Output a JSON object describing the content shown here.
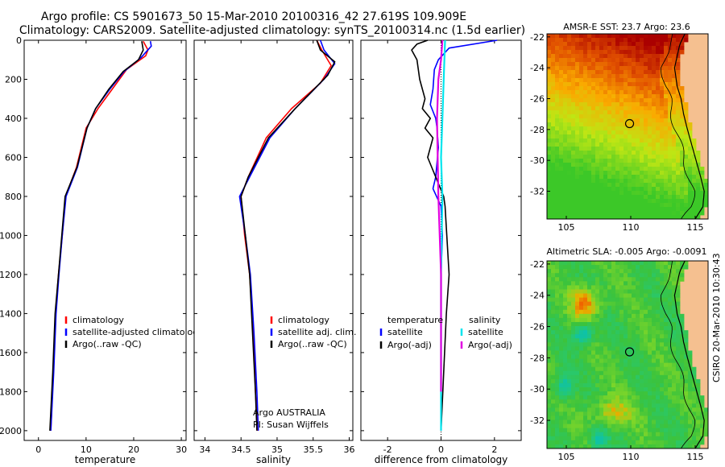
{
  "header": {
    "title_line1": "Argo profile: CS 5901673_50 15-Mar-2010 20100316_42 27.619S 109.909E",
    "title_line2": "Climatology: CARS2009. Satellite-adjusted climatology: synTS_20100314.nc (1.5d earlier)"
  },
  "credit": {
    "argo": "Argo AUSTRALIA",
    "pi": "PI: Susan Wijffels",
    "csiro": "CSIRO  20-Mar-2010 10:30:43"
  },
  "colors": {
    "climatology": "#ff0000",
    "satellite": "#0000ff",
    "argo": "#000000",
    "sal_satellite": "#00e5ee",
    "sal_argo": "#e000e0",
    "land": "#f5c090"
  },
  "chart_data": [
    {
      "type": "line",
      "name": "temperature-panel",
      "xlabel": "temperature",
      "ylabel": "",
      "xlim": [
        -3,
        31
      ],
      "ylim": [
        2050,
        0
      ],
      "y_reversed": true,
      "xticks": [
        0,
        10,
        20,
        30
      ],
      "yticks": [
        0,
        200,
        400,
        600,
        800,
        1000,
        1200,
        1400,
        1600,
        1800,
        2000
      ],
      "legend": [
        "climatology",
        "satellite-adjusted climatology",
        "Argo(..raw -QC)"
      ],
      "legend_position": "lower-right",
      "series": [
        {
          "name": "climatology",
          "color": "#ff0000",
          "x": [
            22.0,
            23.0,
            22.5,
            18.5,
            15.5,
            12.5,
            10.0,
            8.0,
            5.7,
            5.0,
            4.2,
            3.6,
            3.1,
            2.6
          ],
          "y": [
            5,
            50,
            80,
            150,
            250,
            350,
            450,
            650,
            800,
            1000,
            1200,
            1400,
            1700,
            2000
          ]
        },
        {
          "name": "satellite-adjusted climatology",
          "color": "#0000ff",
          "x": [
            23.5,
            23.7,
            21.5,
            18.0,
            15.0,
            12.0,
            10.2,
            8.2,
            5.8,
            5.0,
            4.3,
            3.7,
            3.2,
            2.6
          ],
          "y": [
            5,
            30,
            90,
            160,
            250,
            350,
            450,
            650,
            800,
            1000,
            1200,
            1400,
            1700,
            2000
          ]
        },
        {
          "name": "Argo(..raw -QC)",
          "color": "#000000",
          "x": [
            21.7,
            22.0,
            21.0,
            17.8,
            14.8,
            12.0,
            10.2,
            8.1,
            5.6,
            4.9,
            4.2,
            3.5,
            3.0,
            2.4
          ],
          "y": [
            5,
            50,
            100,
            160,
            250,
            350,
            450,
            650,
            800,
            1000,
            1200,
            1400,
            1700,
            2000
          ]
        }
      ]
    },
    {
      "type": "line",
      "name": "salinity-panel",
      "xlabel": "salinity",
      "ylabel": "",
      "xlim": [
        33.85,
        36.05
      ],
      "ylim": [
        2050,
        0
      ],
      "y_reversed": true,
      "xticks": [
        34,
        34.5,
        35,
        35.5,
        36
      ],
      "yticks": [
        0,
        200,
        400,
        600,
        800,
        1000,
        1200,
        1400,
        1600,
        1800,
        2000
      ],
      "legend": [
        "climatology",
        "satellite adj. clim.",
        "Argo(..raw -QC)"
      ],
      "legend_position": "lower-right",
      "series": [
        {
          "name": "climatology",
          "color": "#ff0000",
          "x": [
            35.55,
            35.62,
            35.75,
            35.6,
            35.2,
            34.85,
            34.6,
            34.5,
            34.55,
            34.62,
            34.67,
            34.7,
            34.73
          ],
          "y": [
            0,
            50,
            130,
            220,
            350,
            500,
            700,
            800,
            1000,
            1200,
            1500,
            1800,
            2000
          ]
        },
        {
          "name": "satellite adj. clim.",
          "color": "#0000ff",
          "x": [
            35.6,
            35.65,
            35.8,
            35.65,
            35.25,
            34.9,
            34.62,
            34.48,
            34.56,
            34.63,
            34.68,
            34.72,
            34.74
          ],
          "y": [
            0,
            50,
            120,
            200,
            350,
            500,
            700,
            800,
            1000,
            1200,
            1500,
            1800,
            2000
          ]
        },
        {
          "name": "Argo(..raw -QC)",
          "color": "#000000",
          "x": [
            35.55,
            35.6,
            35.8,
            35.7,
            35.25,
            34.88,
            34.6,
            34.5,
            34.56,
            34.62,
            34.66,
            34.7,
            34.72
          ],
          "y": [
            0,
            50,
            110,
            180,
            350,
            500,
            700,
            800,
            1000,
            1200,
            1500,
            1800,
            2000
          ]
        }
      ]
    },
    {
      "type": "line",
      "name": "difference-panel",
      "xlabel": "difference from climatology",
      "ylabel": "",
      "xlim": [
        -3,
        3
      ],
      "ylim": [
        2050,
        0
      ],
      "y_reversed": true,
      "xticks": [
        -2,
        0,
        2
      ],
      "yticks": [
        0,
        200,
        400,
        600,
        800,
        1000,
        1200,
        1400,
        1600,
        1800,
        2000
      ],
      "legend": [
        "temperature",
        "satellite",
        "Argo(-adj)",
        "salinity",
        "satellite",
        "Argo(-adj)"
      ],
      "legend_position": "lower-center",
      "series": [
        {
          "name": "temperature satellite",
          "color": "#0000ff",
          "x": [
            2.1,
            0.3,
            -0.1,
            -0.25,
            -0.3,
            -0.4,
            -0.2,
            -0.15,
            -0.1,
            -0.2,
            -0.3,
            0.0,
            0.05,
            0.0,
            0.0,
            0.0
          ],
          "y": [
            0,
            40,
            100,
            150,
            250,
            330,
            400,
            450,
            550,
            700,
            760,
            850,
            1000,
            1200,
            1500,
            2000
          ]
        },
        {
          "name": "temperature Argo(-adj)",
          "color": "#000000",
          "x": [
            -0.5,
            -0.9,
            -1.1,
            -0.9,
            -0.8,
            -0.6,
            -0.7,
            -0.4,
            -0.6,
            -0.3,
            -0.5,
            0.1,
            0.15,
            0.3,
            0.2,
            0.1,
            0.0
          ],
          "y": [
            0,
            20,
            50,
            100,
            200,
            300,
            350,
            400,
            450,
            500,
            600,
            800,
            850,
            1200,
            1400,
            1700,
            2000
          ]
        },
        {
          "name": "salinity satellite",
          "color": "#00e5ee",
          "x": [
            0.15,
            0.1,
            0.05,
            0.0,
            0.05,
            0.0,
            0.0
          ],
          "y": [
            0,
            200,
            400,
            600,
            800,
            1200,
            2000
          ]
        },
        {
          "name": "salinity Argo(-adj)",
          "color": "#e000e0",
          "x": [
            0.05,
            0.0,
            -0.1,
            -0.15,
            -0.1,
            0.0,
            0.0
          ],
          "y": [
            0,
            100,
            200,
            400,
            800,
            1200,
            1800
          ]
        }
      ]
    },
    {
      "type": "heatmap",
      "name": "sst-map",
      "title": "AMSR-E SST: 23.7 Argo: 23.6",
      "xlim": [
        103.5,
        116
      ],
      "ylim": [
        -33.8,
        -21.8
      ],
      "xticks": [
        105,
        110,
        115
      ],
      "yticks": [
        -22,
        -24,
        -26,
        -28,
        -30,
        -32
      ],
      "argo_position": {
        "lon": 109.909,
        "lat": -27.619
      }
    },
    {
      "type": "heatmap",
      "name": "sla-map",
      "title": "Altimetric SLA: -0.005 Argo: -0.0091",
      "xlim": [
        103.5,
        116
      ],
      "ylim": [
        -33.8,
        -21.8
      ],
      "xticks": [
        105,
        110,
        115
      ],
      "yticks": [
        -22,
        -24,
        -26,
        -28,
        -30,
        -32
      ],
      "argo_position": {
        "lon": 109.909,
        "lat": -27.619
      }
    }
  ]
}
